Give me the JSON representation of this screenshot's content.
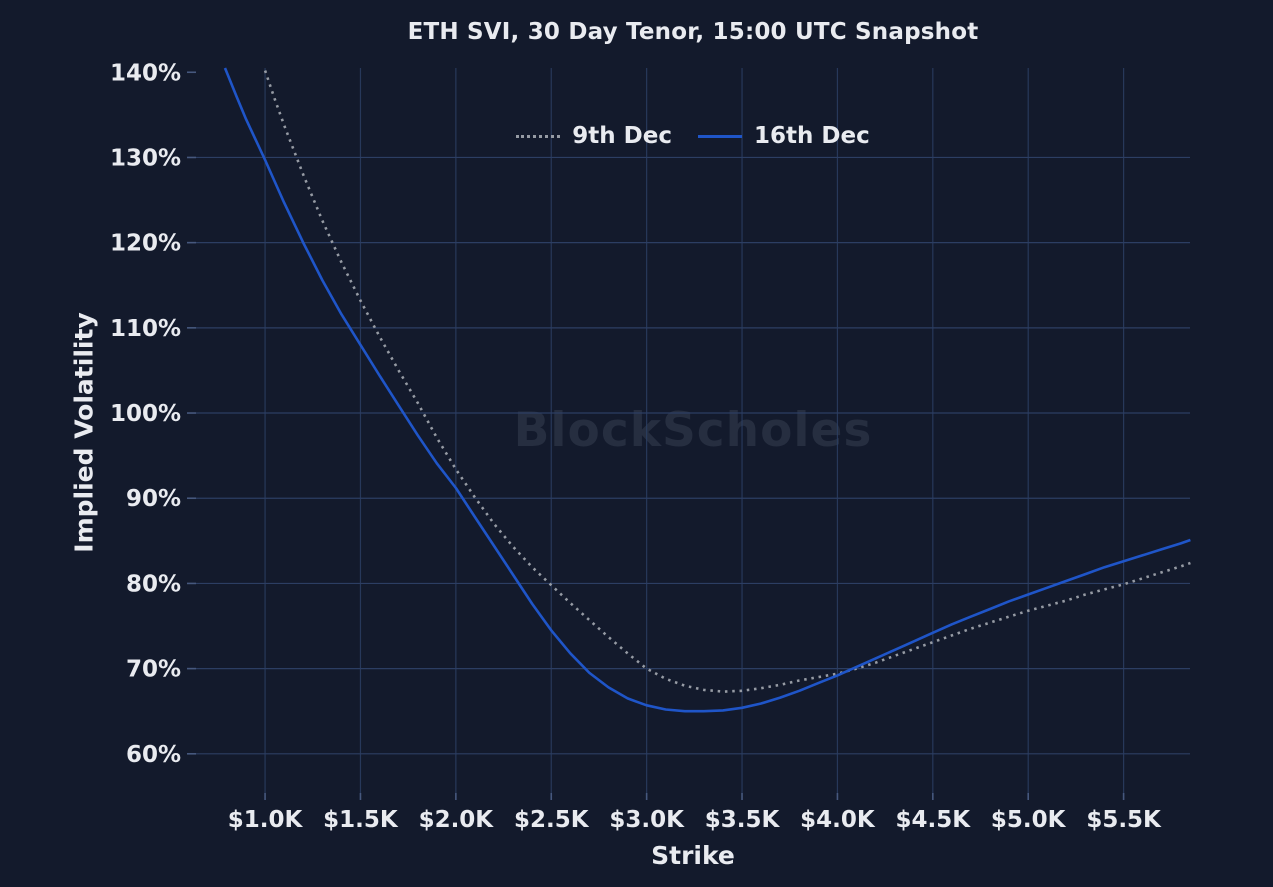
{
  "title": "ETH SVI, 30 Day Tenor, 15:00 UTC Snapshot",
  "watermark": "BlockScholes",
  "colors": {
    "background": "#131a2c",
    "text": "#e9ebf0",
    "grid": "#2c3e63",
    "watermark": "#262e40",
    "series_9th_dec": "#969ba4",
    "series_16th_dec": "#1f55c8"
  },
  "chart_data": {
    "type": "line",
    "title": "ETH SVI, 30 Day Tenor, 15:00 UTC Snapshot",
    "xlabel": "Strike",
    "ylabel": "Implied Volatility",
    "xlim": [
      0.638,
      5.848
    ],
    "ylim": [
      55.4,
      140.5
    ],
    "grid": true,
    "x_ticks": [
      {
        "value": 1.0,
        "label": "$1.0K"
      },
      {
        "value": 1.5,
        "label": "$1.5K"
      },
      {
        "value": 2.0,
        "label": "$2.0K"
      },
      {
        "value": 2.5,
        "label": "$2.5K"
      },
      {
        "value": 3.0,
        "label": "$3.0K"
      },
      {
        "value": 3.5,
        "label": "$3.5K"
      },
      {
        "value": 4.0,
        "label": "$4.0K"
      },
      {
        "value": 4.5,
        "label": "$4.5K"
      },
      {
        "value": 5.0,
        "label": "$5.0K"
      },
      {
        "value": 5.5,
        "label": "$5.5K"
      }
    ],
    "y_ticks": [
      {
        "value": 140,
        "label": "140%",
        "grid": false
      },
      {
        "value": 130,
        "label": "130%"
      },
      {
        "value": 120,
        "label": "120%"
      },
      {
        "value": 110,
        "label": "110%"
      },
      {
        "value": 100,
        "label": "100%"
      },
      {
        "value": 90,
        "label": "90%"
      },
      {
        "value": 80,
        "label": "80%"
      },
      {
        "value": 70,
        "label": "70%"
      },
      {
        "value": 60,
        "label": "60%"
      }
    ],
    "legend": {
      "position": "top-center"
    },
    "series": [
      {
        "name": "9th Dec",
        "style": "dotted",
        "color": "#969ba4",
        "points": [
          [
            1.0,
            140.2
          ],
          [
            1.05,
            136.9
          ],
          [
            1.1,
            133.8
          ],
          [
            1.2,
            128.0
          ],
          [
            1.3,
            122.6
          ],
          [
            1.4,
            117.7
          ],
          [
            1.5,
            113.2
          ],
          [
            1.6,
            109.0
          ],
          [
            1.7,
            105.0
          ],
          [
            1.8,
            101.2
          ],
          [
            1.9,
            97.1
          ],
          [
            2.0,
            93.4
          ],
          [
            2.1,
            90.1
          ],
          [
            2.2,
            87.0
          ],
          [
            2.3,
            84.3
          ],
          [
            2.4,
            81.9
          ],
          [
            2.5,
            79.8
          ],
          [
            2.6,
            77.7
          ],
          [
            2.7,
            75.7
          ],
          [
            2.8,
            73.7
          ],
          [
            2.9,
            71.8
          ],
          [
            3.0,
            70.0
          ],
          [
            3.1,
            68.8
          ],
          [
            3.2,
            68.0
          ],
          [
            3.3,
            67.5
          ],
          [
            3.4,
            67.3
          ],
          [
            3.5,
            67.4
          ],
          [
            3.6,
            67.7
          ],
          [
            3.7,
            68.1
          ],
          [
            3.8,
            68.6
          ],
          [
            3.9,
            69.0
          ],
          [
            4.0,
            69.4
          ],
          [
            4.1,
            70.0
          ],
          [
            4.2,
            70.7
          ],
          [
            4.3,
            71.5
          ],
          [
            4.4,
            72.3
          ],
          [
            4.5,
            73.1
          ],
          [
            4.6,
            73.9
          ],
          [
            4.7,
            74.7
          ],
          [
            4.8,
            75.4
          ],
          [
            4.9,
            76.1
          ],
          [
            5.0,
            76.8
          ],
          [
            5.1,
            77.4
          ],
          [
            5.2,
            78.0
          ],
          [
            5.3,
            78.7
          ],
          [
            5.4,
            79.3
          ],
          [
            5.5,
            79.9
          ],
          [
            5.6,
            80.6
          ],
          [
            5.7,
            81.3
          ],
          [
            5.8,
            82.0
          ],
          [
            5.85,
            82.4
          ]
        ]
      },
      {
        "name": "16th Dec",
        "style": "solid",
        "color": "#1f55c8",
        "points": [
          [
            0.79,
            140.5
          ],
          [
            0.85,
            137.2
          ],
          [
            0.9,
            134.5
          ],
          [
            1.0,
            129.7
          ],
          [
            1.1,
            124.7
          ],
          [
            1.2,
            120.0
          ],
          [
            1.3,
            115.6
          ],
          [
            1.4,
            111.6
          ],
          [
            1.5,
            108.0
          ],
          [
            1.6,
            104.4
          ],
          [
            1.7,
            100.9
          ],
          [
            1.8,
            97.4
          ],
          [
            1.9,
            94.1
          ],
          [
            2.0,
            91.2
          ],
          [
            2.1,
            87.8
          ],
          [
            2.2,
            84.4
          ],
          [
            2.3,
            81.0
          ],
          [
            2.4,
            77.6
          ],
          [
            2.5,
            74.5
          ],
          [
            2.6,
            71.8
          ],
          [
            2.7,
            69.5
          ],
          [
            2.8,
            67.8
          ],
          [
            2.9,
            66.5
          ],
          [
            3.0,
            65.7
          ],
          [
            3.1,
            65.2
          ],
          [
            3.2,
            65.0
          ],
          [
            3.3,
            65.0
          ],
          [
            3.4,
            65.1
          ],
          [
            3.5,
            65.4
          ],
          [
            3.6,
            65.9
          ],
          [
            3.7,
            66.6
          ],
          [
            3.8,
            67.4
          ],
          [
            3.9,
            68.3
          ],
          [
            4.0,
            69.2
          ],
          [
            4.1,
            70.2
          ],
          [
            4.2,
            71.2
          ],
          [
            4.3,
            72.2
          ],
          [
            4.4,
            73.2
          ],
          [
            4.5,
            74.2
          ],
          [
            4.6,
            75.2
          ],
          [
            4.7,
            76.1
          ],
          [
            4.8,
            77.0
          ],
          [
            4.9,
            77.9
          ],
          [
            5.0,
            78.7
          ],
          [
            5.1,
            79.5
          ],
          [
            5.2,
            80.3
          ],
          [
            5.3,
            81.1
          ],
          [
            5.4,
            81.9
          ],
          [
            5.5,
            82.6
          ],
          [
            5.6,
            83.3
          ],
          [
            5.7,
            84.0
          ],
          [
            5.8,
            84.7
          ],
          [
            5.85,
            85.1
          ]
        ]
      }
    ]
  }
}
